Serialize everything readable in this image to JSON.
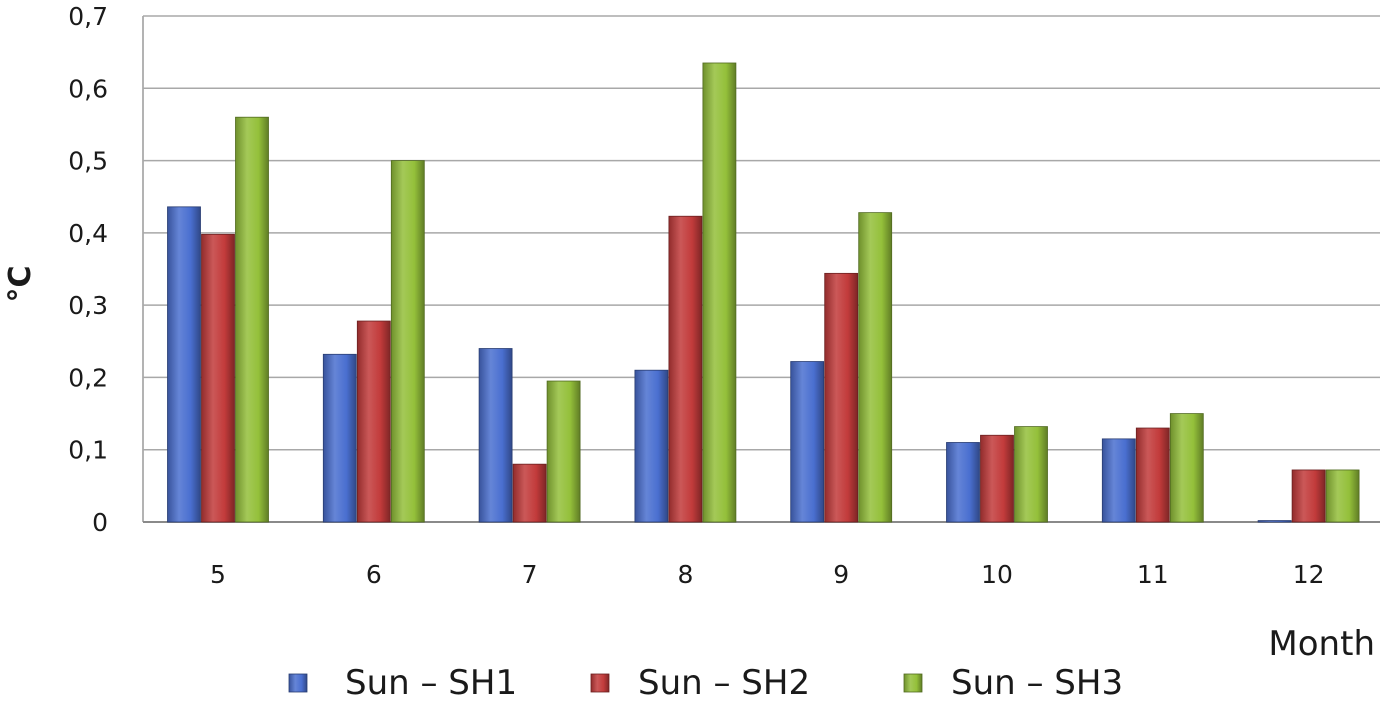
{
  "chart_data": {
    "type": "bar",
    "ylabel": "°C",
    "xlabel": "Month",
    "categories": [
      "5",
      "6",
      "7",
      "8",
      "9",
      "10",
      "11",
      "12"
    ],
    "ylim": [
      0,
      0.7
    ],
    "yticks": [
      "0",
      "0,1",
      "0,2",
      "0,3",
      "0,4",
      "0,5",
      "0,6",
      "0,7"
    ],
    "grid": "horizontal",
    "legend_position": "bottom",
    "series": [
      {
        "name": "Sun – SH1",
        "color": "#4a6fd0",
        "values": [
          0.436,
          0.232,
          0.24,
          0.21,
          0.222,
          0.11,
          0.115,
          0.002
        ]
      },
      {
        "name": "Sun – SH2",
        "color": "#c23b3b",
        "values": [
          0.398,
          0.278,
          0.08,
          0.423,
          0.344,
          0.12,
          0.13,
          0.072
        ]
      },
      {
        "name": "Sun – SH3",
        "color": "#94c03a",
        "values": [
          0.56,
          0.5,
          0.195,
          0.635,
          0.428,
          0.132,
          0.15,
          0.072
        ]
      }
    ]
  }
}
